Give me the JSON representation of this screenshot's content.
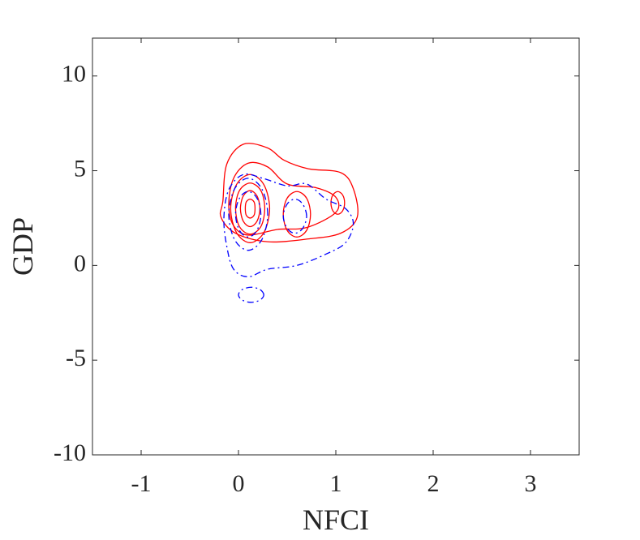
{
  "chart_data": {
    "type": "contour",
    "xlabel": "NFCI",
    "ylabel": "GDP",
    "xlim": [
      -1.5,
      3.5
    ],
    "ylim": [
      -10,
      12
    ],
    "xticks": [
      -1,
      0,
      1,
      2,
      3
    ],
    "yticks": [
      -10,
      -5,
      0,
      5,
      10
    ],
    "series": [
      {
        "color": "#ff0000",
        "line_style": "solid",
        "x": [
          -0.16,
          -0.12,
          0.05,
          0.3,
          0.47,
          0.72,
          1.05,
          1.18,
          1.22,
          1.05,
          0.72,
          0.3,
          -0.03,
          -0.18
        ],
        "y": [
          3.4,
          5.35,
          6.4,
          6.2,
          5.55,
          5.1,
          4.9,
          4.05,
          2.55,
          1.7,
          1.4,
          1.25,
          1.7,
          2.55
        ]
      },
      {
        "color": "#ff0000",
        "line_style": "solid",
        "x": [
          -0.1,
          -0.05,
          0.1,
          0.3,
          0.5,
          0.8,
          1.0,
          1.0,
          0.7,
          0.4,
          0.1,
          -0.05
        ],
        "y": [
          3.2,
          4.6,
          5.4,
          5.2,
          4.3,
          4.1,
          3.6,
          2.8,
          2.0,
          1.9,
          1.6,
          2.1
        ]
      },
      {
        "color": "#ff0000",
        "line_style": "solid",
        "x": [
          0.32,
          0.26,
          0.12,
          -0.02,
          -0.08,
          -0.02,
          0.12,
          0.26
        ],
        "y": [
          3,
          4.27,
          4.8,
          4.27,
          3,
          1.73,
          1.2,
          1.73
        ]
      },
      {
        "color": "#ff0000",
        "line_style": "solid",
        "x": [
          0.27,
          0.23,
          0.12,
          0.01,
          -0.03,
          0.01,
          0.12,
          0.23
        ],
        "y": [
          3,
          3.95,
          4.35,
          3.95,
          3,
          2.05,
          1.65,
          2.05
        ]
      },
      {
        "color": "#ff0000",
        "line_style": "solid",
        "x": [
          0.22,
          0.19,
          0.12,
          0.05,
          0.02,
          0.05,
          0.12,
          0.19
        ],
        "y": [
          3,
          3.67,
          3.95,
          3.67,
          3,
          2.33,
          2.05,
          2.33
        ]
      },
      {
        "color": "#ff0000",
        "line_style": "solid",
        "x": [
          0.17,
          0.16,
          0.12,
          0.08,
          0.07,
          0.08,
          0.12,
          0.16
        ],
        "y": [
          3,
          3.35,
          3.5,
          3.35,
          3,
          2.65,
          2.5,
          2.65
        ]
      },
      {
        "color": "#ff0000",
        "line_style": "solid",
        "x": [
          0.74,
          0.7,
          0.6,
          0.5,
          0.46,
          0.5,
          0.6,
          0.7
        ],
        "y": [
          2.7,
          3.55,
          3.9,
          3.55,
          2.7,
          1.85,
          1.5,
          1.85
        ]
      },
      {
        "color": "#ff0000",
        "line_style": "solid",
        "x": [
          1.09,
          1.07,
          1.02,
          0.97,
          0.95,
          0.97,
          1.02,
          1.07
        ],
        "y": [
          3.3,
          3.72,
          3.9,
          3.72,
          3.3,
          2.88,
          2.7,
          2.88
        ]
      },
      {
        "color": "#0000ff",
        "line_style": "dashdot",
        "x": [
          -0.15,
          -0.1,
          0.05,
          0.25,
          0.5,
          0.7,
          0.9,
          1.1,
          1.18,
          1.1,
          0.9,
          0.6,
          0.3,
          0.1,
          -0.05,
          -0.12
        ],
        "y": [
          2.5,
          4,
          4.8,
          4.6,
          4.2,
          4.3,
          3.5,
          3.0,
          2.2,
          1.2,
          0.6,
          0.0,
          -0.2,
          -0.6,
          -0.2,
          1.0
        ]
      },
      {
        "color": "#0000ff",
        "line_style": "dashdot",
        "x": [
          0.3,
          0.24,
          0.1,
          -0.04,
          -0.1,
          -0.04,
          0.1,
          0.24
        ],
        "y": [
          2.7,
          4.04,
          4.6,
          4.04,
          2.7,
          1.36,
          0.8,
          1.36
        ]
      },
      {
        "color": "#0000ff",
        "line_style": "dashdot",
        "x": [
          0.23,
          0.19,
          0.1,
          0.01,
          -0.03,
          0.01,
          0.1,
          0.19
        ],
        "y": [
          2.7,
          3.55,
          3.9,
          3.55,
          2.7,
          1.85,
          1.5,
          1.85
        ]
      },
      {
        "color": "#0000ff",
        "line_style": "dashdot",
        "x": [
          0.7,
          0.66,
          0.58,
          0.5,
          0.46,
          0.5,
          0.58,
          0.66
        ],
        "y": [
          2.6,
          3.24,
          3.5,
          3.24,
          2.6,
          1.96,
          1.7,
          1.96
        ]
      },
      {
        "color": "#0000ff",
        "line_style": "dashdot",
        "x": [
          0.26,
          0.22,
          0.13,
          0.04,
          0,
          0.04,
          0.13,
          0.22
        ],
        "y": [
          -1.55,
          -1.27,
          -1.15,
          -1.27,
          -1.55,
          -1.83,
          -1.95,
          -1.83
        ]
      }
    ]
  }
}
